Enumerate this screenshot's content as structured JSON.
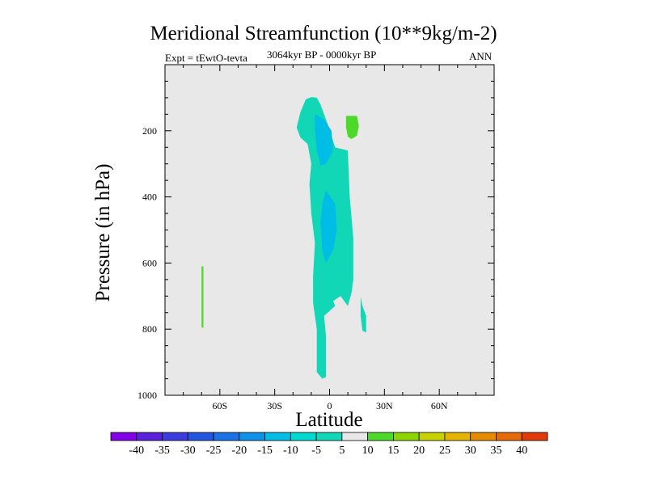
{
  "chart_data": {
    "type": "contour",
    "title": "Meridional Streamfunction (10**9kg/m-2)",
    "experiment_label": "Expt = tEwtO-tevta",
    "period_label": "3064kyr BP - 0000kyr BP",
    "season_label": "ANN",
    "xlabel": "Latitude",
    "ylabel": "Pressure (in hPa)",
    "xlim": [
      -90,
      90
    ],
    "ylim": [
      1000,
      0
    ],
    "x_ticks": [
      {
        "value": -60,
        "label": "60S"
      },
      {
        "value": -30,
        "label": "30S"
      },
      {
        "value": 0,
        "label": "0"
      },
      {
        "value": 30,
        "label": "30N"
      },
      {
        "value": 60,
        "label": "60N"
      }
    ],
    "y_ticks": [
      {
        "value": 200,
        "label": "200"
      },
      {
        "value": 400,
        "label": "400"
      },
      {
        "value": 600,
        "label": "600"
      },
      {
        "value": 800,
        "label": "800"
      },
      {
        "value": 1000,
        "label": "1000"
      }
    ],
    "background_color": "#e8e8e8",
    "contour_regions": [
      {
        "name": "main-band",
        "level": -5,
        "color": "#11d7b7",
        "points": [
          [
            -13,
            105
          ],
          [
            -10,
            98
          ],
          [
            -7,
            100
          ],
          [
            -5,
            120
          ],
          [
            -1,
            180
          ],
          [
            3,
            250
          ],
          [
            10,
            260
          ],
          [
            11,
            400
          ],
          [
            13,
            525
          ],
          [
            13,
            650
          ],
          [
            12,
            690
          ],
          [
            10,
            730
          ],
          [
            6,
            700
          ],
          [
            2,
            715
          ],
          [
            3,
            730
          ],
          [
            -3,
            760
          ],
          [
            -2,
            820
          ],
          [
            -2,
            880
          ],
          [
            -2,
            945
          ],
          [
            -4,
            950
          ],
          [
            -7,
            930
          ],
          [
            -7,
            870
          ],
          [
            -7,
            800
          ],
          [
            -9,
            720
          ],
          [
            -9,
            640
          ],
          [
            -8,
            540
          ],
          [
            -10,
            450
          ],
          [
            -11,
            360
          ],
          [
            -10,
            300
          ],
          [
            -12,
            240
          ],
          [
            -16,
            220
          ],
          [
            -18,
            190
          ],
          [
            -16,
            145
          ]
        ]
      },
      {
        "name": "lower-patch",
        "level": -5,
        "color": "#11d7b7",
        "points": [
          [
            17,
            702
          ],
          [
            18,
            730
          ],
          [
            20,
            760
          ],
          [
            20,
            810
          ],
          [
            18,
            805
          ],
          [
            17,
            760
          ]
        ]
      },
      {
        "name": "upper-core",
        "level": -10,
        "color": "#00bde6",
        "points": [
          [
            -8,
            150
          ],
          [
            -3,
            165
          ],
          [
            1,
            200
          ],
          [
            2,
            260
          ],
          [
            -2,
            300
          ],
          [
            -5,
            305
          ],
          [
            -7,
            260
          ],
          [
            -8,
            200
          ]
        ]
      },
      {
        "name": "mid-core",
        "level": -10,
        "color": "#00bde6",
        "points": [
          [
            -2,
            380
          ],
          [
            3,
            420
          ],
          [
            4,
            500
          ],
          [
            2,
            560
          ],
          [
            -2,
            600
          ],
          [
            -4,
            560
          ],
          [
            -5,
            480
          ],
          [
            -4,
            420
          ]
        ]
      },
      {
        "name": "green-patch",
        "level": 5,
        "color": "#4dd92a",
        "points": [
          [
            9,
            155
          ],
          [
            15,
            155
          ],
          [
            16,
            185
          ],
          [
            15,
            215
          ],
          [
            12,
            225
          ],
          [
            10,
            218
          ],
          [
            9,
            190
          ]
        ]
      },
      {
        "name": "thin-line",
        "level": 5,
        "color": "#4dd92a",
        "points": [
          [
            -70,
            610
          ],
          [
            -69,
            610
          ],
          [
            -69,
            795
          ],
          [
            -70,
            795
          ]
        ]
      }
    ],
    "colorbar": {
      "labels": [
        "-40",
        "-35",
        "-30",
        "-25",
        "-20",
        "-15",
        "-10",
        "-5",
        "5",
        "10",
        "15",
        "20",
        "25",
        "30",
        "35",
        "40"
      ],
      "colors": [
        "#8400e6",
        "#5a20dc",
        "#3a3cde",
        "#2356e0",
        "#1a72e6",
        "#0e91e8",
        "#00bde6",
        "#00d9d0",
        "#11d7b7",
        "#e8e8e8",
        "#4dd92a",
        "#8cd400",
        "#c8d200",
        "#e6b400",
        "#e68a00",
        "#e66a0a",
        "#e23a0a"
      ]
    }
  }
}
